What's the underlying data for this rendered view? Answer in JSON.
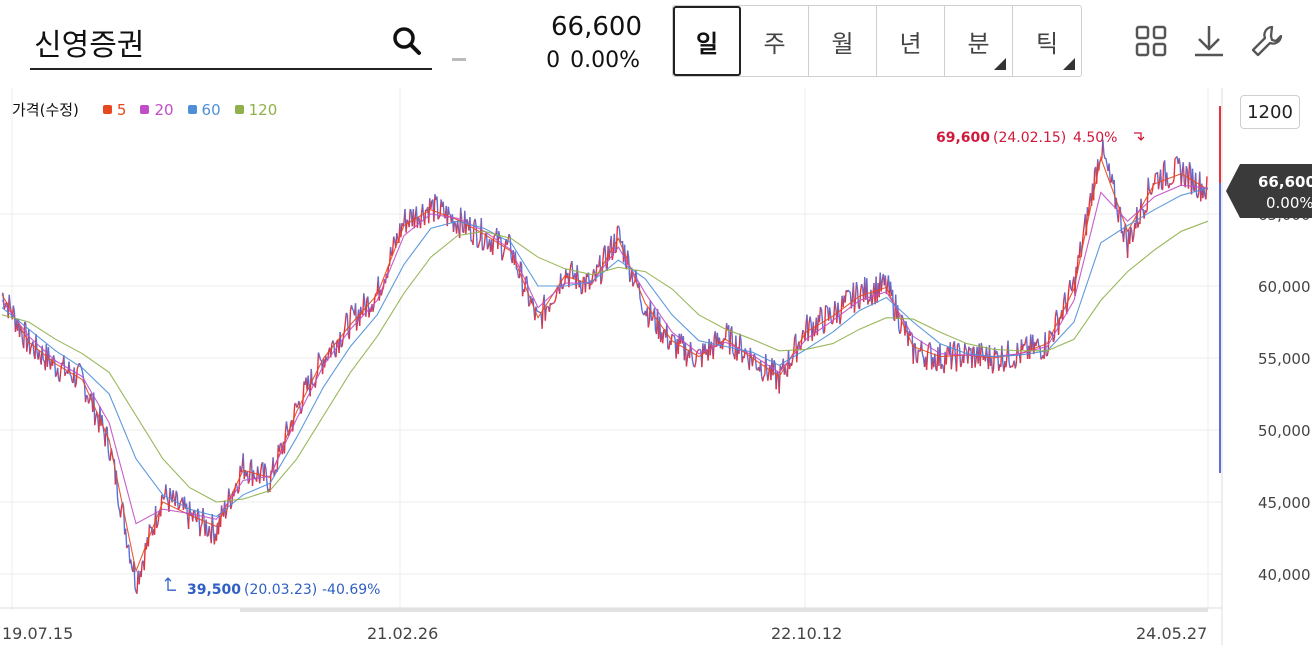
{
  "stock": {
    "name": "신영증권",
    "price": "66,600",
    "change": "0",
    "change_pct": "0.00%"
  },
  "tabs": [
    {
      "label": "일",
      "active": true,
      "corner": false
    },
    {
      "label": "주",
      "active": false,
      "corner": false
    },
    {
      "label": "월",
      "active": false,
      "corner": false
    },
    {
      "label": "년",
      "active": false,
      "corner": false
    },
    {
      "label": "분",
      "active": false,
      "corner": true
    },
    {
      "label": "틱",
      "active": false,
      "corner": true
    }
  ],
  "tools": [
    "grid-icon",
    "download-icon",
    "wrench-icon"
  ],
  "interval": "1200",
  "colors": {
    "up": "#e5323c",
    "down": "#5a6fd8",
    "ma5": "#e8481e",
    "ma20": "#c04ec8",
    "ma60": "#4e8fd8",
    "ma120": "#8fb04a",
    "high_label": "#d0193a",
    "low_label": "#2f5fc4"
  },
  "chart_data": {
    "type": "line",
    "title": "가격(수정)",
    "legend": [
      {
        "label": "5",
        "color": "#e8481e"
      },
      {
        "label": "20",
        "color": "#c04ec8"
      },
      {
        "label": "60",
        "color": "#4e8fd8"
      },
      {
        "label": "120",
        "color": "#8fb04a"
      }
    ],
    "ylim": [
      37500,
      72500
    ],
    "yticks": [
      40000,
      45000,
      50000,
      55000,
      60000,
      65000
    ],
    "ytick_labels": [
      "40,000",
      "45,000",
      "50,000",
      "55,000",
      "60,000",
      "65,000"
    ],
    "xtick_labels": [
      "19.07.15",
      "21.02.26",
      "22.10.12",
      "24.05.27"
    ],
    "current": {
      "price_label": "66,600",
      "pct_label": "0.00%",
      "value": 66600
    },
    "high": {
      "value_label": "69,600",
      "date_label": "(24.02.15)",
      "pct_label": "4.50%",
      "value": 69600
    },
    "low": {
      "value_label": "39,500",
      "date_label": "(20.03.23)",
      "pct_label": "-40.69%",
      "value": 39500
    },
    "series": [
      {
        "name": "가격(수정)",
        "x": [
          "2019-07",
          "2019-09",
          "2019-11",
          "2020-01",
          "2020-02",
          "2020-03",
          "2020-04",
          "2020-06",
          "2020-07",
          "2020-08",
          "2020-10",
          "2020-12",
          "2021-02",
          "2021-03",
          "2021-04",
          "2021-05",
          "2021-06",
          "2021-07",
          "2021-08",
          "2021-09",
          "2021-10",
          "2021-11",
          "2021-12",
          "2022-01",
          "2022-02",
          "2022-04",
          "2022-06",
          "2022-07",
          "2022-08",
          "2022-10",
          "2022-11",
          "2022-12",
          "2023-01",
          "2023-02",
          "2023-03",
          "2023-04",
          "2023-06",
          "2023-08",
          "2023-10",
          "2023-12",
          "2024-01",
          "2024-02",
          "2024-03",
          "2024-04",
          "2024-05",
          "2024-06"
        ],
        "values": [
          59500,
          56000,
          54500,
          53500,
          49000,
          39500,
          45500,
          44000,
          43000,
          47500,
          46500,
          51500,
          55000,
          57500,
          59500,
          64500,
          65500,
          64500,
          63500,
          62500,
          57500,
          61000,
          60000,
          63500,
          58500,
          56000,
          55000,
          56500,
          55000,
          53500,
          57000,
          58000,
          59500,
          60000,
          55500,
          55000,
          55200,
          55000,
          55300,
          56000,
          60000,
          69600,
          63000,
          67500,
          68000,
          66600
        ]
      }
    ],
    "moving_averages": [
      {
        "name": "5",
        "values": [
          59400,
          56100,
          54600,
          53500,
          49300,
          40200,
          45000,
          44100,
          43300,
          47200,
          46700,
          51300,
          55000,
          57300,
          59400,
          64200,
          65300,
          64600,
          63600,
          62400,
          57800,
          60700,
          60100,
          63300,
          58800,
          56200,
          55100,
          56300,
          55000,
          53700,
          56800,
          57900,
          59300,
          59900,
          55800,
          55100,
          55200,
          55000,
          55300,
          56000,
          59800,
          68900,
          63800,
          67100,
          67800,
          66700
        ]
      },
      {
        "name": "20",
        "values": [
          59000,
          56500,
          54800,
          53700,
          50500,
          43500,
          44500,
          44200,
          43800,
          46500,
          46800,
          50800,
          54500,
          57000,
          59000,
          63500,
          65000,
          64700,
          63800,
          62500,
          58500,
          60200,
          60200,
          62700,
          59500,
          56800,
          55300,
          56100,
          55200,
          54000,
          56300,
          57600,
          59000,
          59600,
          56500,
          55300,
          55200,
          55100,
          55300,
          55800,
          59000,
          66500,
          64500,
          66200,
          67000,
          66800
        ]
      },
      {
        "name": "60",
        "values": [
          58500,
          57000,
          55500,
          54300,
          52500,
          48000,
          45500,
          44500,
          44000,
          45500,
          46300,
          49500,
          53000,
          55800,
          58000,
          61500,
          64000,
          64500,
          64000,
          63000,
          60000,
          60000,
          60300,
          61800,
          60500,
          58000,
          56200,
          55800,
          55400,
          54500,
          55600,
          56800,
          58300,
          59200,
          57500,
          56000,
          55300,
          55100,
          55200,
          55500,
          57500,
          63000,
          64200,
          65300,
          66300,
          66800
        ]
      },
      {
        "name": "120",
        "values": [
          58000,
          57500,
          56300,
          55300,
          54000,
          51000,
          48000,
          46000,
          45000,
          45200,
          45800,
          48000,
          51000,
          54000,
          56500,
          59500,
          62000,
          63500,
          63800,
          63300,
          62000,
          61200,
          60800,
          61300,
          61000,
          59800,
          58000,
          57000,
          56300,
          55500,
          55600,
          56000,
          57000,
          57800,
          57700,
          56800,
          56000,
          55600,
          55500,
          55500,
          56300,
          59000,
          61000,
          62500,
          63800,
          64500
        ]
      }
    ]
  }
}
